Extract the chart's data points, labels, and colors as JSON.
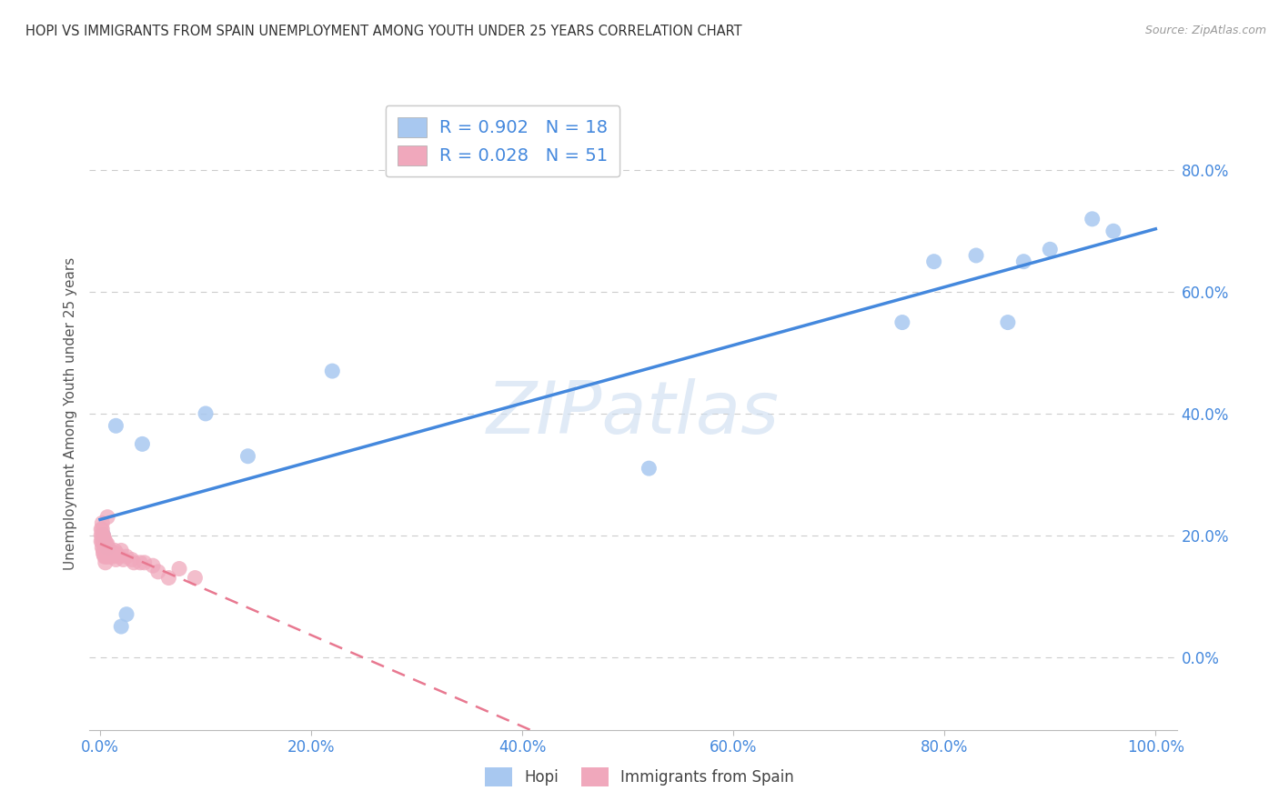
{
  "title": "HOPI VS IMMIGRANTS FROM SPAIN UNEMPLOYMENT AMONG YOUTH UNDER 25 YEARS CORRELATION CHART",
  "source": "Source: ZipAtlas.com",
  "ylabel": "Unemployment Among Youth under 25 years",
  "hopi_R": 0.902,
  "hopi_N": 18,
  "spain_R": 0.028,
  "spain_N": 51,
  "hopi_color": "#a8c8f0",
  "spain_color": "#f0a8bc",
  "hopi_line_color": "#4488dd",
  "spain_line_color": "#e87890",
  "watermark": "ZIPatlas",
  "hopi_x": [
    0.003,
    0.007,
    0.015,
    0.02,
    0.025,
    0.04,
    0.1,
    0.14,
    0.22,
    0.52,
    0.76,
    0.79,
    0.83,
    0.86,
    0.875,
    0.9,
    0.94,
    0.96
  ],
  "hopi_y": [
    0.2,
    0.18,
    0.38,
    0.05,
    0.07,
    0.35,
    0.4,
    0.33,
    0.47,
    0.31,
    0.55,
    0.65,
    0.66,
    0.55,
    0.65,
    0.67,
    0.72,
    0.7
  ],
  "spain_x": [
    0.001,
    0.001,
    0.001,
    0.002,
    0.002,
    0.002,
    0.002,
    0.002,
    0.003,
    0.003,
    0.003,
    0.003,
    0.003,
    0.004,
    0.004,
    0.004,
    0.004,
    0.005,
    0.005,
    0.005,
    0.005,
    0.005,
    0.006,
    0.006,
    0.006,
    0.007,
    0.007,
    0.007,
    0.008,
    0.008,
    0.009,
    0.009,
    0.01,
    0.012,
    0.013,
    0.014,
    0.015,
    0.016,
    0.018,
    0.02,
    0.022,
    0.025,
    0.03,
    0.032,
    0.038,
    0.042,
    0.05,
    0.055,
    0.065,
    0.075,
    0.09
  ],
  "spain_y": [
    0.19,
    0.2,
    0.21,
    0.2,
    0.19,
    0.18,
    0.21,
    0.22,
    0.19,
    0.2,
    0.185,
    0.175,
    0.17,
    0.195,
    0.185,
    0.175,
    0.165,
    0.19,
    0.185,
    0.175,
    0.165,
    0.155,
    0.185,
    0.175,
    0.165,
    0.23,
    0.185,
    0.175,
    0.165,
    0.175,
    0.175,
    0.165,
    0.175,
    0.165,
    0.17,
    0.175,
    0.16,
    0.17,
    0.165,
    0.175,
    0.16,
    0.165,
    0.16,
    0.155,
    0.155,
    0.155,
    0.15,
    0.14,
    0.13,
    0.145,
    0.13
  ],
  "background_color": "#ffffff",
  "grid_color": "#cccccc",
  "xlim": [
    -0.01,
    1.02
  ],
  "ylim": [
    -0.12,
    0.92
  ],
  "xtick_vals": [
    0.0,
    0.2,
    0.4,
    0.6,
    0.8,
    1.0
  ],
  "ytick_vals": [
    0.0,
    0.2,
    0.4,
    0.6,
    0.8
  ]
}
